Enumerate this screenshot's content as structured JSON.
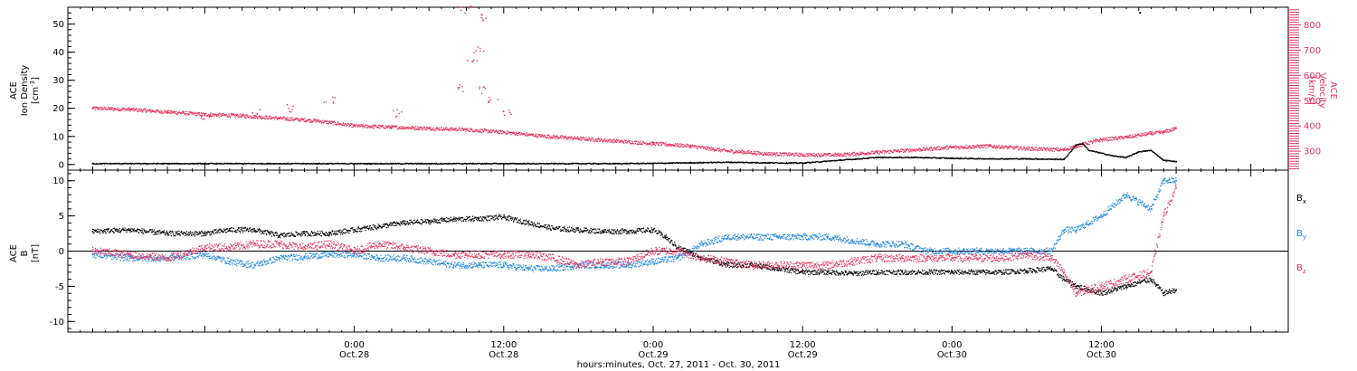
{
  "chart_data": [
    {
      "type": "scatter",
      "panel": "top",
      "ylabel_left": [
        "ACE",
        "Ion Density",
        "[cm",
        "-3",
        "]"
      ],
      "ylabel_right": [
        "ACE",
        "Velocity",
        "[km/s]"
      ],
      "y_left_ticks": [
        "0",
        "10",
        "20",
        "30",
        "40",
        "50"
      ],
      "y_left_lim": [
        -2,
        56
      ],
      "y_right_ticks": [
        "300",
        "400",
        "500",
        "600",
        "700",
        "800"
      ],
      "y_right_lim": [
        225,
        870
      ],
      "series": [
        {
          "axis": "left",
          "color": "#000000",
          "x": [
            -21,
            -18,
            -15,
            -12,
            -9,
            -6,
            -3,
            0,
            3,
            6,
            9,
            12,
            15,
            18,
            21,
            24,
            27,
            30,
            33,
            36,
            39,
            42,
            45,
            48,
            51,
            54,
            57,
            58,
            58.5,
            59,
            61,
            62,
            63,
            64,
            65,
            66
          ],
          "y": [
            0.3,
            0.3,
            0.3,
            0.3,
            0.3,
            0.3,
            0.3,
            0.3,
            0.3,
            0.3,
            0.3,
            0.3,
            0.3,
            0.3,
            0.3,
            0.4,
            0.6,
            0.8,
            0.6,
            0.5,
            1.5,
            2.5,
            2.5,
            2.2,
            2.0,
            2.0,
            1.8,
            7.0,
            7.5,
            5.0,
            3.0,
            2.5,
            4.5,
            5.0,
            1.5,
            1.0
          ]
        },
        {
          "axis": "right",
          "color": "#e8315f",
          "x": [
            -21,
            -18,
            -15,
            -12,
            -9,
            -6,
            -3,
            0,
            3,
            6,
            9,
            12,
            15,
            18,
            21,
            24,
            27,
            30,
            33,
            36,
            39,
            42,
            45,
            48,
            51,
            54,
            57,
            58,
            60,
            62,
            64,
            65,
            66
          ],
          "y": [
            470,
            465,
            455,
            445,
            440,
            430,
            420,
            400,
            395,
            390,
            385,
            375,
            360,
            350,
            340,
            330,
            320,
            300,
            290,
            285,
            285,
            295,
            305,
            315,
            320,
            310,
            305,
            320,
            345,
            355,
            370,
            375,
            390
          ]
        }
      ],
      "outliers_right": [
        [
          9,
          860
        ],
        [
          10.6,
          830
        ],
        [
          10,
          700
        ],
        [
          9.5,
          650
        ],
        [
          8.5,
          550
        ],
        [
          10.4,
          540
        ],
        [
          11.2,
          500
        ],
        [
          12.3,
          450
        ],
        [
          3.5,
          450
        ],
        [
          -2,
          500
        ],
        [
          -5,
          470
        ],
        [
          -8,
          450
        ],
        [
          -12,
          440
        ]
      ]
    },
    {
      "type": "scatter",
      "panel": "bottom",
      "ylabel_left": [
        "ACE",
        "B",
        "[nT]"
      ],
      "y_ticks": [
        "-10",
        "-5",
        "0",
        "5",
        "10"
      ],
      "ylim": [
        -11.5,
        11.5
      ],
      "legend": [
        "B",
        "B",
        "B"
      ],
      "legend_sub": [
        "x",
        "y",
        "z"
      ],
      "series": [
        {
          "name": "Bx",
          "color": "#000000",
          "x": [
            -21,
            -18,
            -15,
            -12,
            -10,
            -8,
            -6,
            -4,
            -2,
            0,
            2,
            4,
            6,
            8,
            10,
            12,
            14,
            16,
            18,
            20,
            22,
            24,
            25,
            26,
            28,
            30,
            32,
            34,
            36,
            38,
            40,
            42,
            44,
            46,
            48,
            50,
            52,
            54,
            56,
            57,
            58,
            60,
            62,
            64,
            65,
            66
          ],
          "y": [
            2.8,
            3.0,
            2.5,
            2.5,
            3.0,
            3.0,
            2.2,
            2.5,
            2.5,
            3.0,
            3.5,
            4.0,
            4.2,
            4.5,
            4.6,
            4.8,
            4.0,
            3.2,
            3.0,
            2.8,
            2.8,
            3.0,
            2.0,
            0.5,
            -1.0,
            -2.0,
            -2.0,
            -2.5,
            -3.0,
            -3.0,
            -3.2,
            -3.0,
            -3.0,
            -3.0,
            -3.0,
            -3.0,
            -3.0,
            -2.8,
            -2.5,
            -4.0,
            -5.0,
            -6.0,
            -5.0,
            -4.0,
            -6.0,
            -5.5
          ]
        },
        {
          "name": "By",
          "color": "#1e88e5",
          "x": [
            -21,
            -18,
            -15,
            -12,
            -10,
            -8,
            -6,
            -4,
            -2,
            0,
            2,
            4,
            6,
            8,
            10,
            12,
            14,
            16,
            18,
            20,
            22,
            24,
            26,
            28,
            30,
            32,
            34,
            36,
            38,
            40,
            42,
            44,
            46,
            48,
            50,
            52,
            54,
            56,
            57,
            58,
            60,
            62,
            64,
            65,
            66
          ],
          "y": [
            -0.5,
            -1.0,
            -1.0,
            -0.5,
            -1.5,
            -2.0,
            -1.0,
            -0.8,
            -0.5,
            -0.5,
            -1.0,
            -1.0,
            -1.5,
            -2.0,
            -2.0,
            -2.0,
            -2.5,
            -2.5,
            -2.0,
            -2.0,
            -2.0,
            -1.5,
            -1.0,
            1.0,
            2.0,
            2.0,
            2.0,
            2.0,
            2.0,
            1.5,
            1.0,
            1.0,
            0.0,
            0.0,
            0.0,
            0.0,
            0.0,
            0.0,
            3.0,
            3.0,
            5.0,
            8.0,
            6.0,
            10.0,
            10.0
          ]
        },
        {
          "name": "Bz",
          "color": "#e8315f",
          "x": [
            -21,
            -18,
            -15,
            -12,
            -10,
            -8,
            -6,
            -4,
            -2,
            0,
            2,
            4,
            6,
            8,
            10,
            12,
            14,
            16,
            18,
            20,
            22,
            24,
            26,
            28,
            30,
            32,
            34,
            36,
            38,
            40,
            42,
            44,
            46,
            48,
            50,
            52,
            54,
            56,
            57,
            58,
            60,
            62,
            64,
            65,
            66
          ],
          "y": [
            0.0,
            -0.5,
            -1.0,
            0.5,
            0.5,
            1.0,
            1.0,
            0.5,
            1.0,
            0.0,
            1.0,
            0.5,
            0.0,
            -0.5,
            -0.5,
            -0.5,
            -0.5,
            -1.0,
            -2.0,
            -1.5,
            -1.5,
            0.0,
            0.0,
            -1.0,
            -1.5,
            -2.0,
            -2.0,
            -2.0,
            -2.0,
            -1.5,
            -1.0,
            -1.0,
            -1.0,
            -1.0,
            -1.0,
            -1.0,
            -0.5,
            -1.0,
            -3.0,
            -6.0,
            -5.0,
            -4.0,
            -3.0,
            5.0,
            9.0
          ]
        }
      ]
    }
  ],
  "x_axis": {
    "lim": [
      -23,
      75
    ],
    "major_hours": [
      0,
      24,
      48,
      72
    ],
    "tick_labels": [
      {
        "time": "0:00",
        "date": "Oct.28",
        "hour": 0
      },
      {
        "time": "12:00",
        "date": "Oct.28",
        "hour": 12
      },
      {
        "time": "0:00",
        "date": "Oct.29",
        "hour": 24
      },
      {
        "time": "12:00",
        "date": "Oct.29",
        "hour": 36
      },
      {
        "time": "0:00",
        "date": "Oct.30",
        "hour": 48
      },
      {
        "time": "12:00",
        "date": "Oct.30",
        "hour": 60
      }
    ],
    "title": "hours:minutes, Oct. 27, 2011 - Oct. 30, 2011"
  },
  "colors": {
    "black": "#000000",
    "pink": "#e8315f",
    "blue": "#1e88e5"
  }
}
